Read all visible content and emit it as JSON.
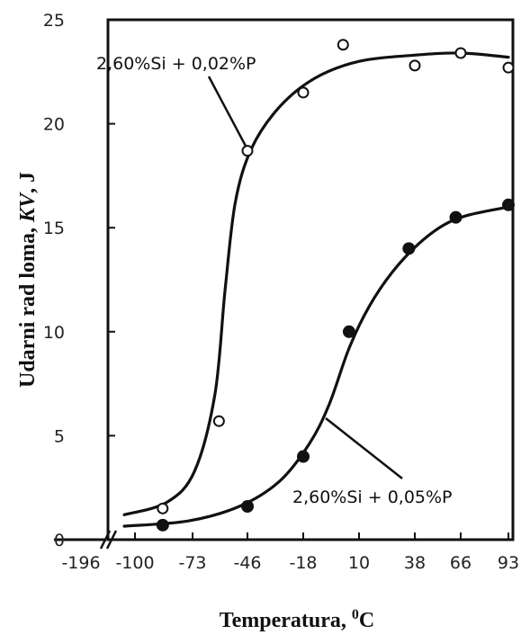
{
  "chart_data": {
    "type": "scatter",
    "xlabel_main": "Temperatura, ",
    "xlabel_sup": "0",
    "xlabel_unit": "C",
    "ylabel_pre": "Udarni rad loma, ",
    "ylabel_var": "KV",
    "ylabel_post": ", J",
    "ylim": [
      0,
      25
    ],
    "x_tick_labels": [
      "-196",
      "-100",
      "-73",
      "-46",
      "-18",
      "10",
      "38",
      "66",
      "93"
    ],
    "x_axis_break": "between -196 and -100",
    "y_ticks": [
      0,
      5,
      10,
      15,
      20,
      25
    ],
    "grid": false,
    "series": [
      {
        "name": "2,60%Si + 0,02%P",
        "marker": "open-circle",
        "points": [
          {
            "x": -87,
            "y": 1.5
          },
          {
            "x": -60,
            "y": 5.7
          },
          {
            "x": -46,
            "y": 18.7
          },
          {
            "x": -18,
            "y": 21.5
          },
          {
            "x": 2,
            "y": 23.8
          },
          {
            "x": 38,
            "y": 22.8
          },
          {
            "x": 66,
            "y": 23.4
          },
          {
            "x": 93,
            "y": 22.7
          }
        ],
        "curve": [
          {
            "x": -105,
            "y": 1.2
          },
          {
            "x": -85,
            "y": 1.8
          },
          {
            "x": -72,
            "y": 3.3
          },
          {
            "x": -62,
            "y": 7.0
          },
          {
            "x": -57,
            "y": 12.0
          },
          {
            "x": -52,
            "y": 16.2
          },
          {
            "x": -44,
            "y": 18.8
          },
          {
            "x": -30,
            "y": 20.8
          },
          {
            "x": -12,
            "y": 22.2
          },
          {
            "x": 10,
            "y": 23.0
          },
          {
            "x": 38,
            "y": 23.3
          },
          {
            "x": 66,
            "y": 23.4
          },
          {
            "x": 93,
            "y": 23.2
          }
        ]
      },
      {
        "name": "2,60%Si + 0,05%P",
        "marker": "filled-circle",
        "points": [
          {
            "x": -87,
            "y": 0.7
          },
          {
            "x": -46,
            "y": 1.6
          },
          {
            "x": -18,
            "y": 4.0
          },
          {
            "x": 5,
            "y": 10.0
          },
          {
            "x": 35,
            "y": 14.0
          },
          {
            "x": 63,
            "y": 15.5
          },
          {
            "x": 93,
            "y": 16.1
          }
        ],
        "curve": [
          {
            "x": -105,
            "y": 0.65
          },
          {
            "x": -75,
            "y": 0.9
          },
          {
            "x": -50,
            "y": 1.6
          },
          {
            "x": -30,
            "y": 2.8
          },
          {
            "x": -15,
            "y": 4.6
          },
          {
            "x": -5,
            "y": 6.5
          },
          {
            "x": 5,
            "y": 9.2
          },
          {
            "x": 15,
            "y": 11.2
          },
          {
            "x": 27,
            "y": 12.9
          },
          {
            "x": 40,
            "y": 14.2
          },
          {
            "x": 55,
            "y": 15.1
          },
          {
            "x": 70,
            "y": 15.6
          },
          {
            "x": 93,
            "y": 16.0
          }
        ]
      }
    ]
  }
}
